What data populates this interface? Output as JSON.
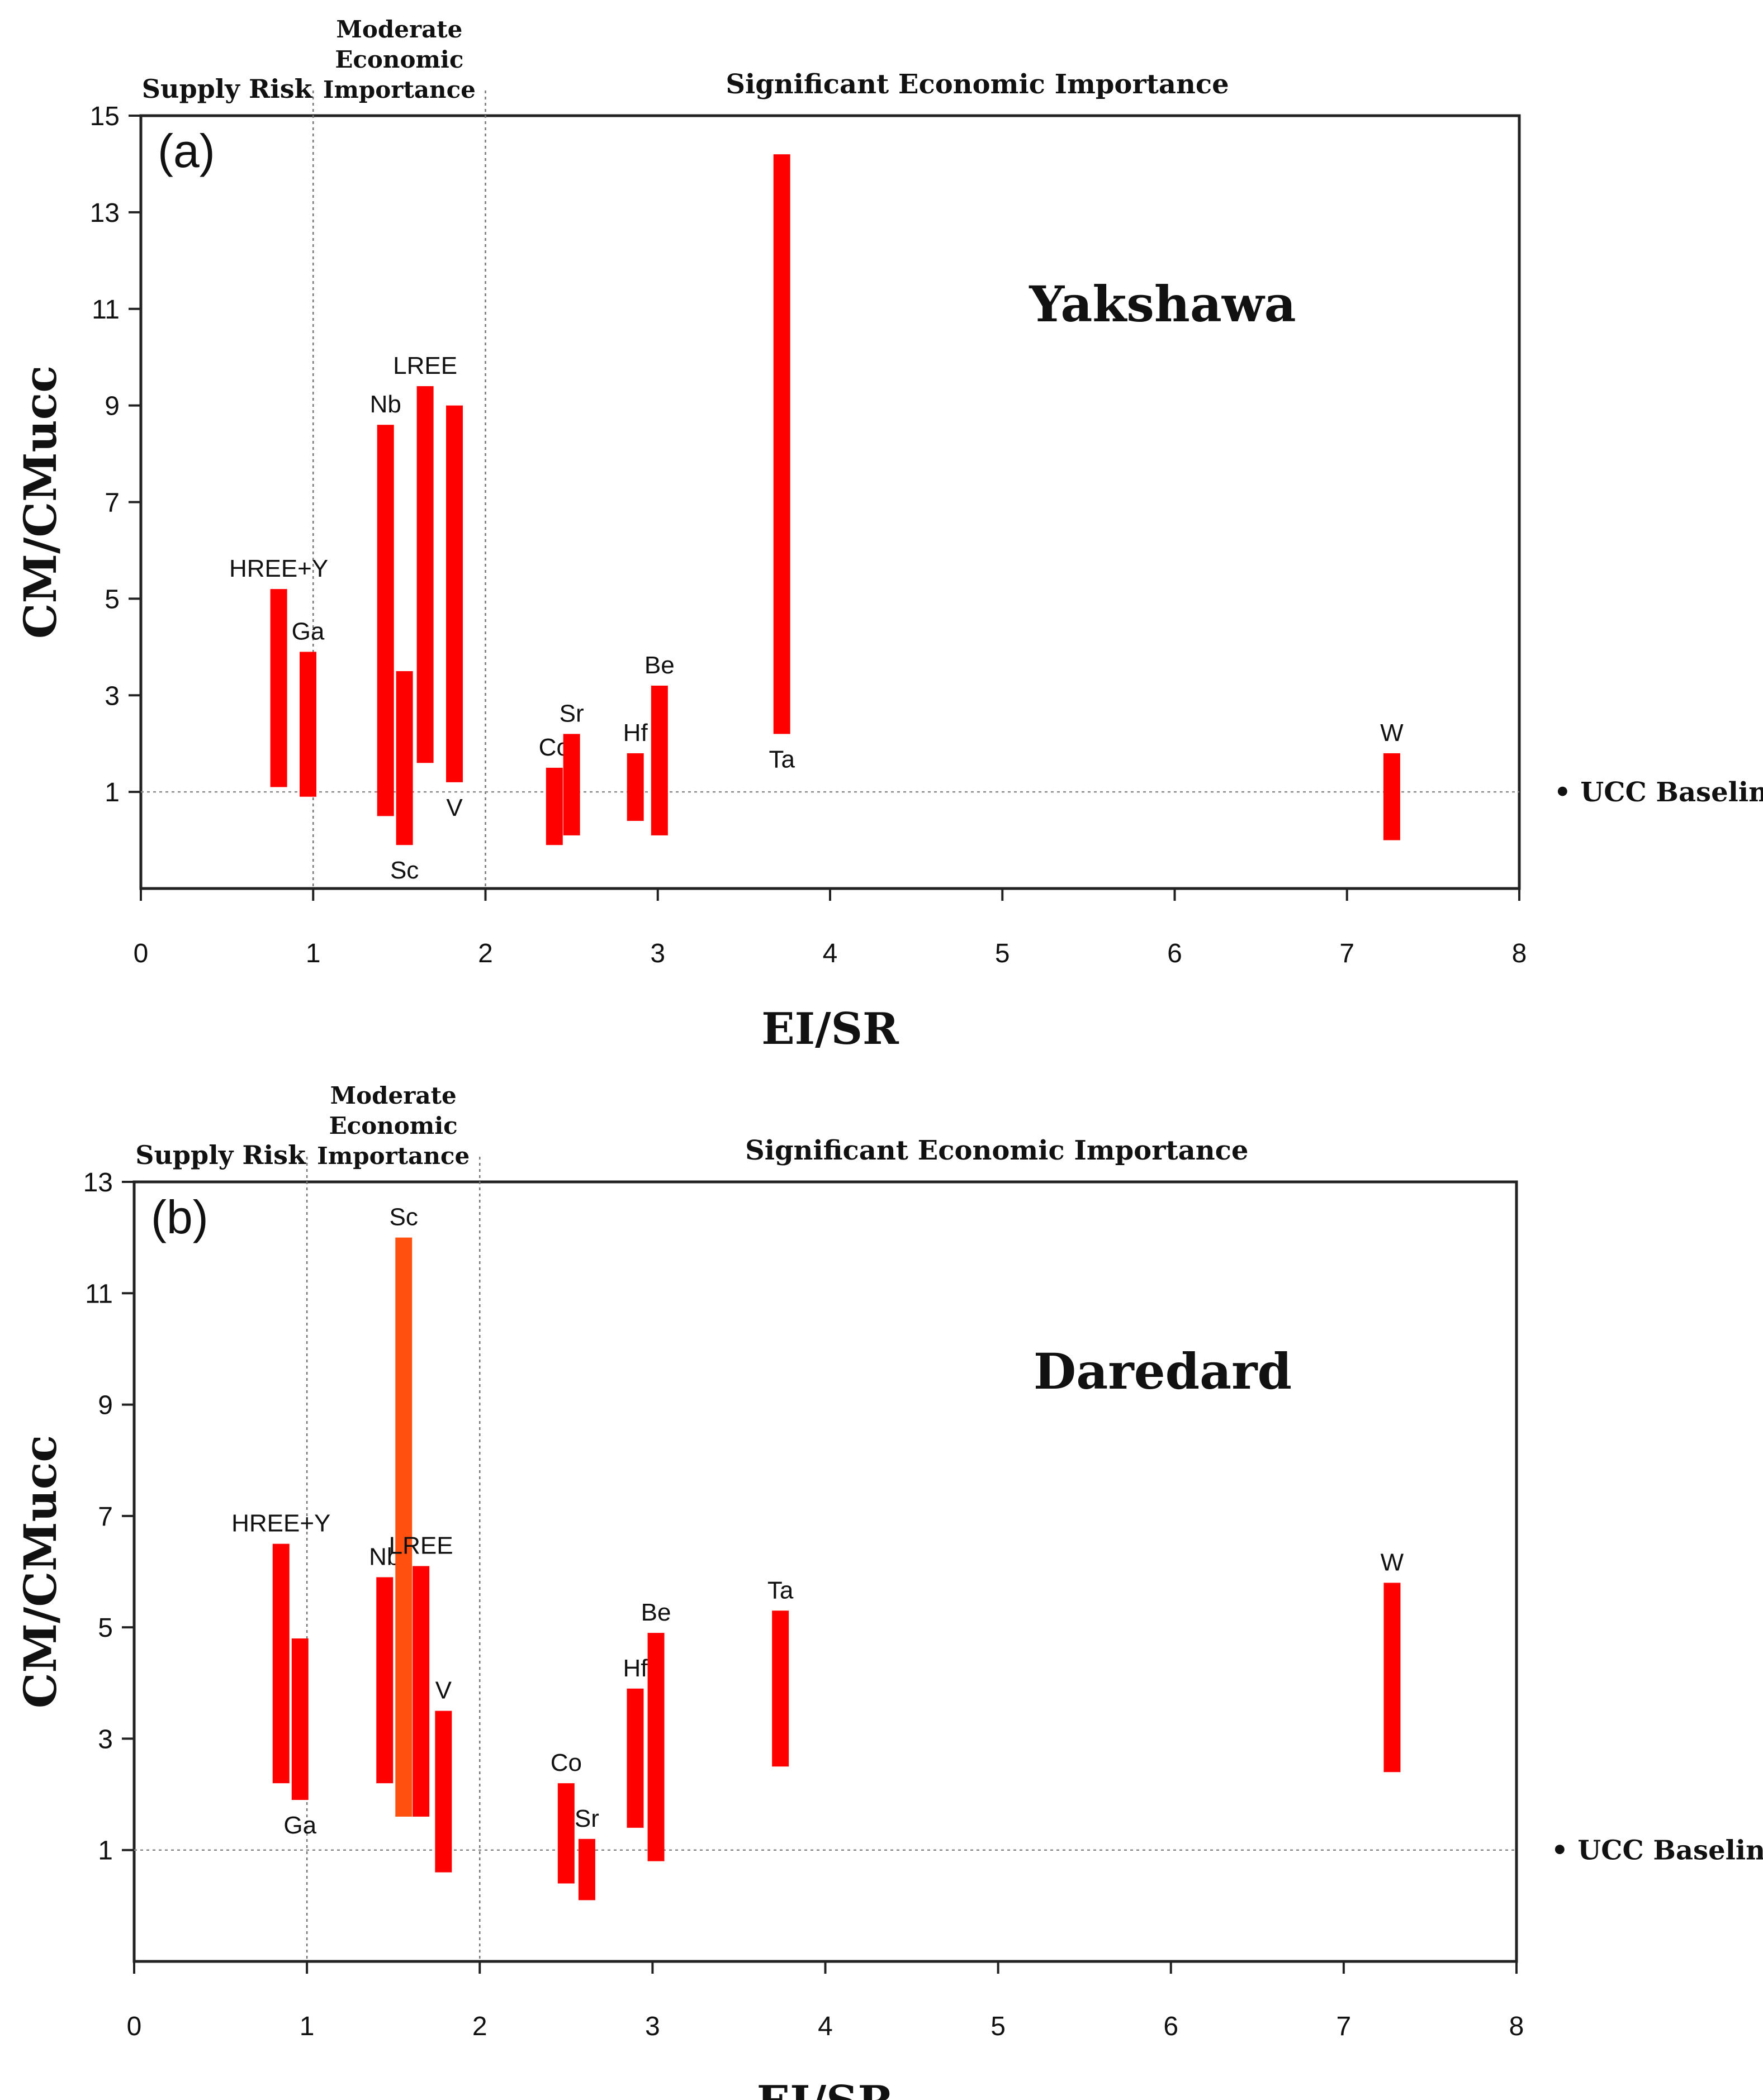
{
  "chart_data": [
    {
      "type": "range-bar",
      "panel_label": "(a)",
      "site": "Yakshawa",
      "xlabel": "EI/SR",
      "ylabel": "CM/CMucc",
      "xlim": [
        0,
        8
      ],
      "ylim": [
        -1,
        15
      ],
      "xticks": [
        "0",
        "1",
        "2",
        "3",
        "4",
        "5",
        "6",
        "7",
        "8"
      ],
      "yticks": [
        "1",
        "3",
        "5",
        "7",
        "9",
        "11",
        "13",
        "15"
      ],
      "ytick_values": [
        1,
        3,
        5,
        7,
        9,
        11,
        13,
        15
      ],
      "regions": {
        "supply_risk": "Supply Risk",
        "moderate_line1": "Moderate",
        "moderate_line2": "Economic",
        "moderate_line3": "Importance",
        "significant": "Significant Economic Importance"
      },
      "region_boundaries": [
        1,
        2
      ],
      "baseline_value": 1,
      "baseline_label": "• UCC Baseline",
      "bar_color": "#ff0000",
      "bars": [
        {
          "label": "HREE+Y",
          "x": 0.8,
          "low": 1.1,
          "high": 5.2,
          "label_pos": "top"
        },
        {
          "label": "Ga",
          "x": 0.97,
          "low": 0.9,
          "high": 3.9,
          "label_pos": "top"
        },
        {
          "label": "Nb",
          "x": 1.42,
          "low": 0.5,
          "high": 8.6,
          "label_pos": "top"
        },
        {
          "label": "Sc",
          "x": 1.53,
          "low": -0.1,
          "high": 3.5,
          "label_pos": "bottom"
        },
        {
          "label": "LREE",
          "x": 1.65,
          "low": 1.6,
          "high": 9.4,
          "label_pos": "top"
        },
        {
          "label": "V",
          "x": 1.82,
          "low": 1.2,
          "high": 9.0,
          "label_pos": "bottom"
        },
        {
          "label": "Co",
          "x": 2.4,
          "low": -0.1,
          "high": 1.5,
          "label_pos": "top"
        },
        {
          "label": "Sr",
          "x": 2.5,
          "low": 0.1,
          "high": 2.2,
          "label_pos": "top"
        },
        {
          "label": "Hf",
          "x": 2.87,
          "low": 0.4,
          "high": 1.8,
          "label_pos": "top"
        },
        {
          "label": "Be",
          "x": 3.01,
          "low": 0.1,
          "high": 3.2,
          "label_pos": "top"
        },
        {
          "label": "Ta",
          "x": 3.72,
          "low": 2.2,
          "high": 14.2,
          "label_pos": "bottom"
        },
        {
          "label": "W",
          "x": 7.26,
          "low": 0.0,
          "high": 1.8,
          "label_pos": "top"
        }
      ]
    },
    {
      "type": "range-bar",
      "panel_label": "(b)",
      "site": "Daredard",
      "xlabel": "EI/SR",
      "ylabel": "CM/CMucc",
      "xlim": [
        0,
        8
      ],
      "ylim": [
        -1,
        13
      ],
      "xticks": [
        "0",
        "1",
        "2",
        "3",
        "4",
        "5",
        "6",
        "7",
        "8"
      ],
      "yticks": [
        "1",
        "3",
        "5",
        "7",
        "9",
        "11",
        "13"
      ],
      "ytick_values": [
        1,
        3,
        5,
        7,
        9,
        11,
        13
      ],
      "regions": {
        "supply_risk": "Supply Risk",
        "moderate_line1": "Moderate",
        "moderate_line2": "Economic",
        "moderate_line3": "Importance",
        "significant": "Significant Economic Importance"
      },
      "region_boundaries": [
        1,
        2
      ],
      "baseline_value": 1,
      "baseline_label": "• UCC Baseline",
      "bar_color": "#ff0000",
      "highlight_color": "#ff5010",
      "bars": [
        {
          "label": "HREE+Y",
          "x": 0.85,
          "low": 2.2,
          "high": 6.5,
          "label_pos": "top"
        },
        {
          "label": "Ga",
          "x": 0.96,
          "low": 1.9,
          "high": 4.8,
          "label_pos": "bottom"
        },
        {
          "label": "Nb",
          "x": 1.45,
          "low": 2.2,
          "high": 5.9,
          "label_pos": "top"
        },
        {
          "label": "Sc",
          "x": 1.56,
          "low": 1.6,
          "high": 12.0,
          "label_pos": "top",
          "highlight": true
        },
        {
          "label": "LREE",
          "x": 1.66,
          "low": 1.6,
          "high": 6.1,
          "label_pos": "top"
        },
        {
          "label": "V",
          "x": 1.79,
          "low": 0.6,
          "high": 3.5,
          "label_pos": "top"
        },
        {
          "label": "Co",
          "x": 2.5,
          "low": 0.4,
          "high": 2.2,
          "label_pos": "top"
        },
        {
          "label": "Sr",
          "x": 2.62,
          "low": 0.1,
          "high": 1.2,
          "label_pos": "top"
        },
        {
          "label": "Hf",
          "x": 2.9,
          "low": 1.4,
          "high": 3.9,
          "label_pos": "top"
        },
        {
          "label": "Be",
          "x": 3.02,
          "low": 0.8,
          "high": 4.9,
          "label_pos": "top"
        },
        {
          "label": "Ta",
          "x": 3.74,
          "low": 2.5,
          "high": 5.3,
          "label_pos": "top"
        },
        {
          "label": "W",
          "x": 7.28,
          "low": 2.4,
          "high": 5.8,
          "label_pos": "top"
        }
      ]
    }
  ]
}
